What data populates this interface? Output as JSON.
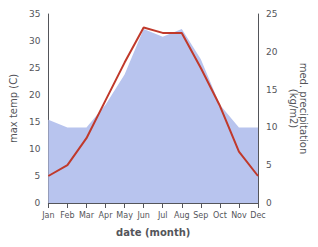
{
  "chart_data": {
    "type": "line",
    "categories": [
      "Jan",
      "Feb",
      "Mar",
      "Apr",
      "May",
      "Jun",
      "Jul",
      "Aug",
      "Sep",
      "Oct",
      "Nov",
      "Dec"
    ],
    "series": [
      {
        "type": "area",
        "axis": "y2",
        "color": "#b8c4ee",
        "values": [
          11,
          10,
          10,
          13,
          17,
          23,
          22,
          23,
          19,
          13,
          10,
          10
        ]
      },
      {
        "type": "line",
        "color": "#c0392b",
        "values": [
          5,
          7,
          12,
          19,
          26,
          32.5,
          31.5,
          31.5,
          25,
          18,
          9.5,
          5
        ]
      }
    ],
    "xlabel": "date (month)",
    "ylabel": "max temp (C)",
    "y2label": "med. precipitation\n(kg/m2)",
    "ylim": [
      0,
      35
    ],
    "yticks": [
      0,
      5,
      10,
      15,
      20,
      25,
      30,
      35
    ],
    "y2lim": [
      0,
      25
    ],
    "y2ticks": [
      0,
      5,
      10,
      15,
      20,
      25
    ],
    "grid": false
  }
}
